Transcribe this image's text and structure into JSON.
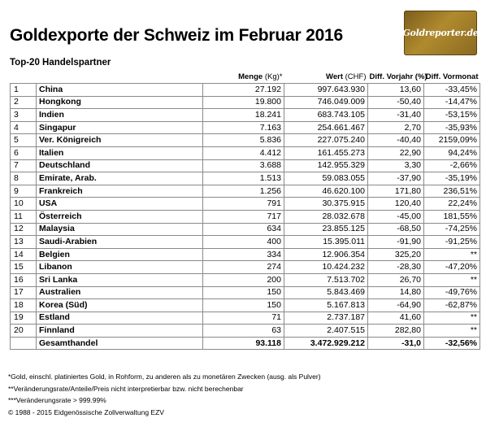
{
  "title": "Goldexporte der Schweiz im Februar 2016",
  "logo_text": "Goldreporter.de",
  "subtitle": "Top-20 Handelspartner",
  "columns": {
    "menge": "Menge",
    "menge_unit": "(Kg)*",
    "wert": "Wert",
    "wert_unit": "(CHF)",
    "diff_vorjahr": "Diff. Vorjahr (%)",
    "diff_vormonat": "Diff. Vormonat"
  },
  "rows": [
    {
      "rank": "1",
      "name": "China",
      "menge": "27.192",
      "wert": "997.643.930",
      "dv": "13,60",
      "dm": "-33,45%"
    },
    {
      "rank": "2",
      "name": "Hongkong",
      "menge": "19.800",
      "wert": "746.049.009",
      "dv": "-50,40",
      "dm": "-14,47%"
    },
    {
      "rank": "3",
      "name": "Indien",
      "menge": "18.241",
      "wert": "683.743.105",
      "dv": "-31,40",
      "dm": "-53,15%"
    },
    {
      "rank": "4",
      "name": "Singapur",
      "menge": "7.163",
      "wert": "254.661.467",
      "dv": "2,70",
      "dm": "-35,93%"
    },
    {
      "rank": "5",
      "name": "Ver. Königreich",
      "menge": "5.836",
      "wert": "227.075.240",
      "dv": "-40,40",
      "dm": "2159,09%"
    },
    {
      "rank": "6",
      "name": "Italien",
      "menge": "4.412",
      "wert": "161.455.273",
      "dv": "22,90",
      "dm": "94,24%"
    },
    {
      "rank": "7",
      "name": "Deutschland",
      "menge": "3.688",
      "wert": "142.955.329",
      "dv": "3,30",
      "dm": "-2,66%"
    },
    {
      "rank": "8",
      "name": "Emirate, Arab.",
      "menge": "1.513",
      "wert": "59.083.055",
      "dv": "-37,90",
      "dm": "-35,19%"
    },
    {
      "rank": "9",
      "name": "Frankreich",
      "menge": "1.256",
      "wert": "46.620.100",
      "dv": "171,80",
      "dm": "236,51%"
    },
    {
      "rank": "10",
      "name": "USA",
      "menge": "791",
      "wert": "30.375.915",
      "dv": "120,40",
      "dm": "22,24%"
    },
    {
      "rank": "11",
      "name": "Österreich",
      "menge": "717",
      "wert": "28.032.678",
      "dv": "-45,00",
      "dm": "181,55%"
    },
    {
      "rank": "12",
      "name": "Malaysia",
      "menge": "634",
      "wert": "23.855.125",
      "dv": "-68,50",
      "dm": "-74,25%"
    },
    {
      "rank": "13",
      "name": "Saudi-Arabien",
      "menge": "400",
      "wert": "15.395.011",
      "dv": "-91,90",
      "dm": "-91,25%"
    },
    {
      "rank": "14",
      "name": "Belgien",
      "menge": "334",
      "wert": "12.906.354",
      "dv": "325,20",
      "dm": "**"
    },
    {
      "rank": "15",
      "name": "Libanon",
      "menge": "274",
      "wert": "10.424.232",
      "dv": "-28,30",
      "dm": "-47,20%"
    },
    {
      "rank": "16",
      "name": "Sri Lanka",
      "menge": "200",
      "wert": "7.513.702",
      "dv": "26,70",
      "dm": "**"
    },
    {
      "rank": "17",
      "name": "Australien",
      "menge": "150",
      "wert": "5.843.469",
      "dv": "14,80",
      "dm": "-49,76%"
    },
    {
      "rank": "18",
      "name": "Korea (Süd)",
      "menge": "150",
      "wert": "5.167.813",
      "dv": "-64,90",
      "dm": "-62,87%"
    },
    {
      "rank": "19",
      "name": "Estland",
      "menge": "71",
      "wert": "2.737.187",
      "dv": "41,60",
      "dm": "**"
    },
    {
      "rank": "20",
      "name": "Finnland",
      "menge": "63",
      "wert": "2.407.515",
      "dv": "282,80",
      "dm": "**"
    }
  ],
  "total": {
    "name": "Gesamthandel",
    "menge": "93.118",
    "wert": "3.472.929.212",
    "dv": "-31,0",
    "dm": "-32,56%"
  },
  "notes": [
    "*Gold, einschl. platiniertes Gold, in Rohform, zu anderen als zu monetären Zwecken (ausg. als Pulver)",
    "**Veränderungsrate/Anteile/Preis nicht interpretierbar bzw. nicht berechenbar",
    "***Veränderungsrate > 999.99%",
    "© 1988 - 2015 Eidgenössische Zollverwaltung EZV"
  ],
  "colors": {
    "logo_gold": "#9c7a28",
    "border": "#8a8a8a"
  }
}
